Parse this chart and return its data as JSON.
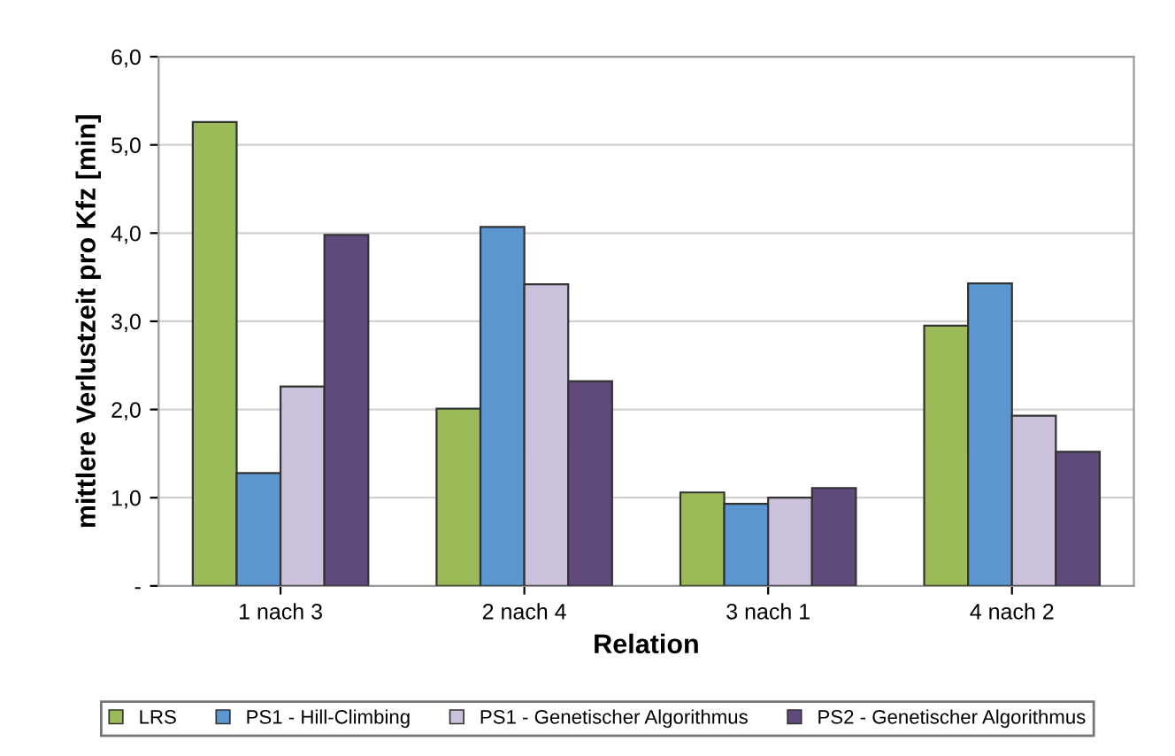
{
  "chart_data": {
    "type": "bar",
    "xlabel": "Relation",
    "ylabel": "mittlere Verlustzeit pro Kfz [min]",
    "categories": [
      "1 nach 3",
      "2 nach 4",
      "3 nach 1",
      "4 nach 2"
    ],
    "series": [
      {
        "name": "LRS",
        "color": "#9bbb59",
        "values": [
          5.26,
          2.01,
          1.06,
          2.95
        ]
      },
      {
        "name": "PS1 - Hill-Climbing",
        "color": "#5b96d0",
        "values": [
          1.28,
          4.07,
          0.93,
          3.43
        ]
      },
      {
        "name": "PS1 - Genetischer Algorithmus",
        "color": "#ccc1da",
        "values": [
          2.26,
          3.42,
          1.0,
          1.93
        ]
      },
      {
        "name": "PS2 - Genetischer Algorithmus",
        "color": "#5f4a7b",
        "values": [
          3.98,
          2.32,
          1.11,
          1.52
        ]
      }
    ],
    "ylim": [
      0,
      6
    ],
    "yticks": [
      {
        "value": 0,
        "label": "-"
      },
      {
        "value": 1,
        "label": "1,0"
      },
      {
        "value": 2,
        "label": "2,0"
      },
      {
        "value": 3,
        "label": "3,0"
      },
      {
        "value": 4,
        "label": "4,0"
      },
      {
        "value": 5,
        "label": "5,0"
      },
      {
        "value": 6,
        "label": "6,0"
      }
    ],
    "grid": "y",
    "legend": "bottom"
  }
}
